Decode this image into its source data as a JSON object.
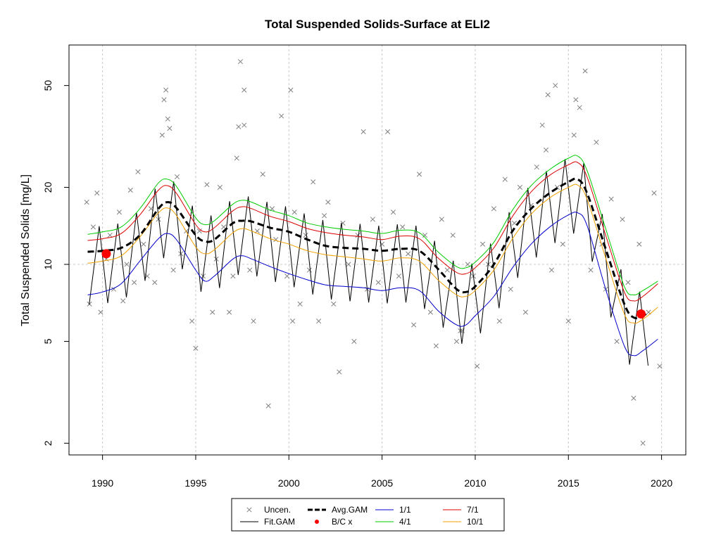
{
  "chart_data": {
    "type": "line",
    "title": "Total Suspended Solids-Surface at ELI2",
    "xlabel": "",
    "ylabel": "Total Suspended Solids [mg/L]",
    "y_scale": "log",
    "xlim": [
      1988.2,
      2021.3
    ],
    "ylim": [
      1.8,
      72
    ],
    "x_ticks": [
      1990,
      1995,
      2000,
      2005,
      2010,
      2015,
      2020
    ],
    "y_ticks": [
      2,
      5,
      10,
      20,
      50
    ],
    "grid": true,
    "legend_position": "bottom",
    "legend": [
      {
        "label": "Uncen.",
        "kind": "cross",
        "color": "#808080"
      },
      {
        "label": "Fit.GAM",
        "kind": "line",
        "color": "#000000"
      },
      {
        "label": "Avg.GAM",
        "kind": "dashed",
        "color": "#000000"
      },
      {
        "label": "B/C x",
        "kind": "dot",
        "color": "#ff0000"
      },
      {
        "label": "1/1",
        "kind": "line",
        "color": "#0000cc"
      },
      {
        "label": "4/1",
        "kind": "line",
        "color": "#00cc00"
      },
      {
        "label": "7/1",
        "kind": "line",
        "color": "#dd0000"
      },
      {
        "label": "10/1",
        "kind": "line",
        "color": "#f0a000"
      }
    ],
    "series": [
      {
        "name": "Avg.GAM",
        "color": "#000000",
        "dash": true,
        "x": [
          1989.2,
          1990,
          1991,
          1992,
          1993,
          1993.5,
          1994,
          1995,
          1995.5,
          1996,
          1997,
          1997.5,
          1998,
          1999,
          2000,
          2001,
          2002,
          2003,
          2004,
          2005,
          2006,
          2007,
          2008,
          2009,
          2009.5,
          2010,
          2011,
          2012,
          2013,
          2014,
          2015,
          2015.5,
          2016,
          2017,
          2018,
          2018.5,
          2019,
          2019.3
        ],
        "y": [
          11.2,
          11.3,
          11.6,
          13.0,
          16.5,
          17.5,
          16.5,
          13.0,
          12.3,
          12.5,
          14.5,
          14.8,
          14.7,
          13.9,
          13.4,
          12.5,
          11.8,
          11.6,
          11.5,
          11.3,
          11.5,
          11.3,
          9.6,
          8.0,
          7.8,
          8.2,
          10.0,
          13.5,
          16.5,
          19.0,
          21.0,
          21.5,
          19.0,
          11.5,
          7.0,
          6.2,
          6.3,
          6.5
        ]
      },
      {
        "name": "1/1",
        "color": "#0000cc",
        "dash": false,
        "x": [
          1989.2,
          1990,
          1991,
          1992,
          1993,
          1993.5,
          1994,
          1995,
          1995.5,
          1996,
          1997,
          1997.5,
          1998,
          1999,
          2000,
          2001,
          2002,
          2003,
          2004,
          2005,
          2006,
          2007,
          2008,
          2009,
          2009.5,
          2010,
          2011,
          2012,
          2013,
          2014,
          2015,
          2015.5,
          2016,
          2017,
          2018,
          2018.5,
          2019,
          2019.8
        ],
        "y": [
          7.6,
          7.8,
          8.4,
          10.3,
          12.6,
          13.2,
          12.4,
          9.5,
          8.6,
          9.0,
          10.5,
          10.8,
          10.5,
          9.8,
          9.2,
          8.7,
          8.3,
          8.2,
          8.1,
          7.9,
          8.1,
          7.9,
          6.6,
          5.8,
          5.8,
          6.3,
          7.5,
          9.7,
          12.0,
          14.0,
          15.6,
          15.9,
          14.2,
          8.0,
          4.8,
          4.4,
          4.6,
          5.1
        ]
      },
      {
        "name": "4/1",
        "color": "#00cc00",
        "dash": false,
        "x": [
          1989.2,
          1990,
          1991,
          1992,
          1993,
          1993.5,
          1994,
          1995,
          1995.5,
          1996,
          1997,
          1997.5,
          1998,
          1999,
          2000,
          2001,
          2002,
          2003,
          2004,
          2005,
          2006,
          2007,
          2008,
          2009,
          2009.5,
          2010,
          2011,
          2012,
          2013,
          2014,
          2015,
          2015.5,
          2016,
          2017,
          2018,
          2018.5,
          2019,
          2019.8
        ],
        "y": [
          13.1,
          13.4,
          14.0,
          16.5,
          20.8,
          21.5,
          20.0,
          15.2,
          14.3,
          14.8,
          17.2,
          17.8,
          17.5,
          16.3,
          15.5,
          14.5,
          14.0,
          13.7,
          13.5,
          13.2,
          13.6,
          13.3,
          11.2,
          9.8,
          9.7,
          10.2,
          12.2,
          16.3,
          20.3,
          23.5,
          26.0,
          26.5,
          23.3,
          13.8,
          8.2,
          7.6,
          7.9,
          8.6
        ]
      },
      {
        "name": "7/1",
        "color": "#dd0000",
        "dash": false,
        "x": [
          1989.2,
          1990,
          1991,
          1992,
          1993,
          1993.5,
          1994,
          1995,
          1995.5,
          1996,
          1997,
          1997.5,
          1998,
          1999,
          2000,
          2001,
          2002,
          2003,
          2004,
          2005,
          2006,
          2007,
          2008,
          2009,
          2009.5,
          2010,
          2011,
          2012,
          2013,
          2014,
          2015,
          2015.5,
          2016,
          2017,
          2018,
          2018.5,
          2019,
          2019.8
        ],
        "y": [
          12.4,
          12.6,
          13.2,
          15.6,
          19.5,
          20.3,
          18.8,
          14.3,
          13.4,
          13.9,
          16.2,
          16.8,
          16.5,
          15.4,
          14.7,
          13.8,
          13.3,
          13.0,
          12.8,
          12.5,
          12.9,
          12.6,
          10.6,
          9.3,
          9.2,
          9.7,
          11.6,
          15.4,
          19.2,
          22.3,
          24.5,
          25.0,
          22.0,
          13.0,
          7.8,
          7.2,
          7.5,
          8.4
        ]
      },
      {
        "name": "10/1",
        "color": "#f0a000",
        "dash": false,
        "x": [
          1989.2,
          1990,
          1991,
          1992,
          1993,
          1993.5,
          1994,
          1995,
          1995.5,
          1996,
          1997,
          1997.5,
          1998,
          1999,
          2000,
          2001,
          2002,
          2003,
          2004,
          2005,
          2006,
          2007,
          2008,
          2009,
          2009.5,
          2010,
          2011,
          2012,
          2013,
          2014,
          2015,
          2015.5,
          2016,
          2017,
          2018,
          2018.5,
          2019,
          2019.8
        ],
        "y": [
          10.1,
          10.3,
          10.8,
          12.8,
          15.9,
          16.6,
          15.4,
          11.7,
          11.0,
          11.4,
          13.3,
          13.8,
          13.5,
          12.6,
          12.0,
          11.3,
          10.9,
          10.7,
          10.5,
          10.3,
          10.6,
          10.3,
          8.7,
          7.6,
          7.5,
          7.9,
          9.5,
          12.6,
          15.7,
          18.2,
          20.0,
          20.4,
          18.0,
          10.6,
          6.4,
          5.9,
          6.1,
          6.8
        ]
      }
    ],
    "fit_gam": {
      "name": "Fit.GAM",
      "color": "#000000",
      "x_start": 1989.2,
      "x_end": 2019.8,
      "peak_offset": 0.82,
      "trough_offset": 0.28,
      "peak_ratio": 1.25,
      "trough_ratio": 0.62
    },
    "bc_points": [
      {
        "x": 1990.2,
        "y": 11.0
      },
      {
        "x": 2018.9,
        "y": 6.4
      }
    ],
    "uncensored": {
      "x": [
        1989.15,
        1989.3,
        1989.5,
        1989.7,
        1989.9,
        1990.2,
        1990.4,
        1990.6,
        1990.9,
        1991.1,
        1991.3,
        1991.5,
        1991.7,
        1991.9,
        1992.2,
        1992.4,
        1992.6,
        1992.8,
        1993.0,
        1993.2,
        1993.4,
        1993.6,
        1993.8,
        1994.0,
        1994.2,
        1994.5,
        1994.8,
        1995.0,
        1995.2,
        1995.4,
        1995.6,
        1995.9,
        1996.1,
        1996.3,
        1996.5,
        1996.8,
        1997.0,
        1997.2,
        1997.4,
        1997.6,
        1997.9,
        1998.1,
        1998.3,
        1998.6,
        1998.9,
        1999.1,
        1999.3,
        1999.6,
        1999.9,
        2000.1,
        2000.3,
        2000.6,
        2000.9,
        2001.1,
        2001.3,
        2001.6,
        2001.9,
        2002.1,
        2002.4,
        2002.7,
        2002.9,
        2003.2,
        2003.5,
        2003.7,
        2004.0,
        2004.2,
        2004.5,
        2004.8,
        2005.0,
        2005.3,
        2005.6,
        2005.9,
        2006.1,
        2006.4,
        2006.7,
        2007.0,
        2007.3,
        2007.6,
        2007.9,
        2008.2,
        2008.5,
        2008.8,
        2009.0,
        2009.3,
        2009.6,
        2009.9,
        2010.1,
        2010.4,
        2010.7,
        2011.0,
        2011.3,
        2011.6,
        2011.9,
        2012.1,
        2012.4,
        2012.7,
        2013.0,
        2013.3,
        2013.6,
        2013.9,
        2014.1,
        2014.4,
        2014.7,
        2015.0,
        2015.3,
        2015.6,
        2015.9,
        2016.2,
        2016.5,
        2016.8,
        2017.0,
        2017.3,
        2017.6,
        2017.9,
        2018.2,
        2018.5,
        2018.8,
        2019.0,
        2019.3,
        2019.6,
        2019.9,
        1993.3,
        1993.5,
        1997.3,
        1997.6,
        2000.2,
        2009.2,
        2015.4,
        2013.8,
        2014.3
      ],
      "y": [
        17.5,
        7.0,
        14.0,
        19.0,
        6.5,
        10.5,
        13.0,
        8.0,
        16.0,
        7.2,
        10.0,
        19.5,
        8.5,
        23.0,
        12.0,
        9.0,
        16.5,
        8.5,
        15.0,
        32.0,
        48.0,
        34.0,
        9.5,
        22.0,
        11.0,
        13.5,
        6.0,
        4.7,
        13.5,
        9.0,
        20.5,
        6.5,
        10.5,
        20.0,
        14.0,
        6.5,
        9.0,
        26.0,
        62.0,
        35.0,
        9.5,
        6.0,
        13.5,
        22.5,
        2.8,
        16.5,
        12.5,
        38.0,
        9.0,
        48.0,
        16.0,
        7.0,
        13.0,
        9.5,
        21.0,
        6.0,
        15.5,
        17.5,
        7.0,
        3.8,
        14.5,
        10.0,
        5.0,
        13.0,
        33.0,
        8.0,
        15.0,
        8.5,
        12.0,
        33.0,
        16.0,
        9.0,
        14.0,
        11.0,
        5.8,
        22.5,
        13.0,
        6.5,
        4.8,
        15.0,
        9.5,
        13.0,
        5.0,
        5.5,
        10.0,
        9.0,
        4.0,
        12.0,
        10.0,
        16.5,
        6.0,
        21.5,
        8.0,
        14.5,
        20.0,
        6.5,
        17.0,
        24.0,
        35.0,
        46.0,
        9.5,
        20.0,
        12.0,
        6.0,
        32.0,
        41.0,
        57.0,
        9.5,
        30.0,
        12.0,
        8.0,
        18.0,
        5.0,
        15.0,
        8.5,
        3.0,
        12.0,
        2.0,
        6.5,
        19.0,
        4.0,
        44.0,
        37.0,
        34.5,
        48.0,
        6.0,
        5.5,
        44.0,
        28.0,
        50.0
      ]
    }
  }
}
